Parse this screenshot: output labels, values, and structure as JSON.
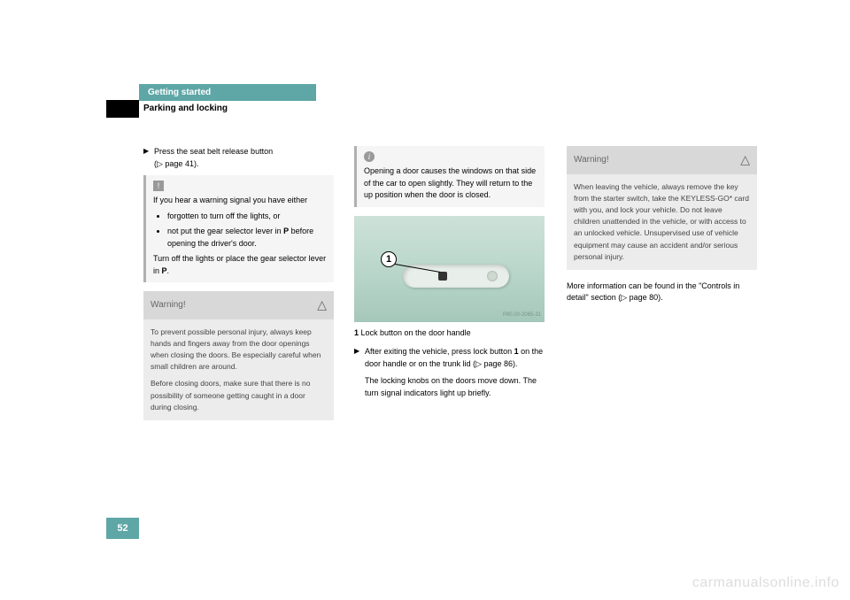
{
  "header": {
    "chapter": "Getting started",
    "section": "Parking and locking"
  },
  "col1": {
    "step1_a": "Press the seat belt release button",
    "step1_b": "(▷ page 41).",
    "note": {
      "intro": "If you hear a warning signal you have either",
      "li1": "forgotten to turn off the lights, or",
      "li2_a": "not put the gear selector lever in ",
      "li2_b": "P",
      "li2_c": " before opening the driver's door.",
      "out_a": "Turn off the lights or place the gear selector lever in ",
      "out_b": "P",
      "out_c": "."
    },
    "warning": {
      "title": "Warning!",
      "p1": "To prevent possible personal injury, always keep hands and fingers away from the door openings when closing the doors. Be especially careful when small children are around.",
      "p2": "Before closing doors, make sure that there is no possibility of someone getting caught in a door during closing."
    }
  },
  "col2": {
    "info": "Opening a door causes the windows on that side of the car to open slightly. They will return to the up position when the door is closed.",
    "fig_id": "P80.00-2065-31",
    "callout": "1",
    "caption_b": "1",
    "caption_t": " Lock button on the door handle",
    "step_a": "After exiting the vehicle, press lock button ",
    "step_b": "1",
    "step_c": " on the door handle or on the trunk lid (▷ page 86).",
    "step_body": "The locking knobs on the doors move down. The turn signal indicators light up briefly."
  },
  "col3": {
    "warning": {
      "title": "Warning!",
      "p1": "When leaving the vehicle, always remove the key from the starter switch, take the KEYLESS-GO* card with you, and lock your vehicle. Do not leave children unattended in the vehicle, or with access to an unlocked vehicle. Unsupervised use of vehicle equipment may cause an accident and/or serious personal injury."
    },
    "more": "More information can be found in the \"Controls in detail\" section (▷ page 80)."
  },
  "page_number": "52",
  "watermark": "carmanualsonline.info"
}
